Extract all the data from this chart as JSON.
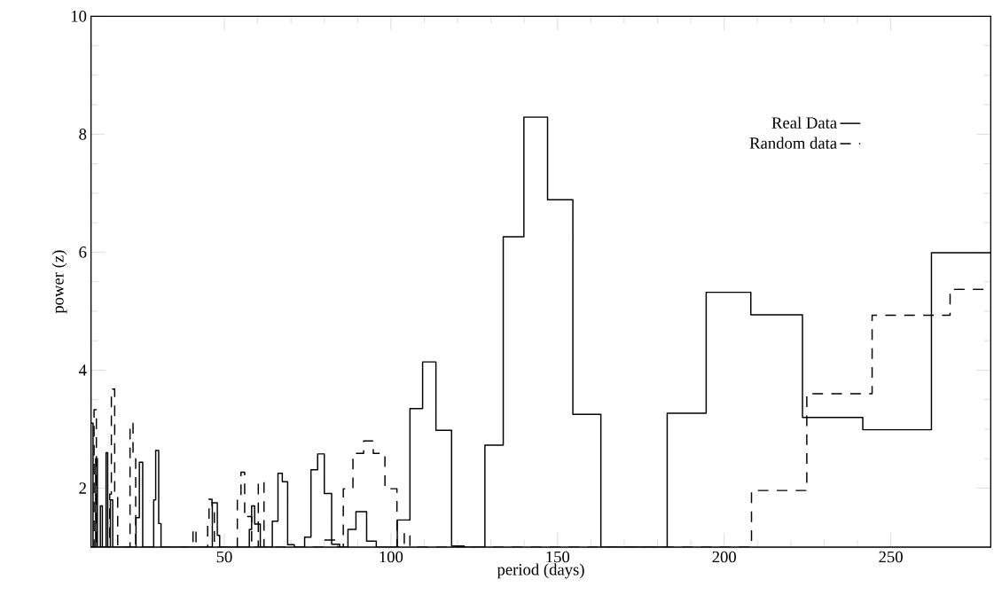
{
  "chart_data": {
    "type": "step",
    "xlabel": "period (days)",
    "ylabel": "power (z)",
    "xlim": [
      10,
      280
    ],
    "ylim": [
      1,
      10
    ],
    "xticks": [
      50,
      100,
      150,
      200,
      250
    ],
    "yticks": [
      2,
      4,
      6,
      8,
      10
    ],
    "legend": "top right",
    "series": [
      {
        "name": "Real Data",
        "color": "#000000",
        "line_style": "solid",
        "x": [
          10,
          10.6,
          11.4,
          11.9,
          12.8,
          13.4,
          14.5,
          15.0,
          15.8,
          16.5,
          23.5,
          24.5,
          25.5,
          28.8,
          29.4,
          30.3,
          31.0,
          46.4,
          47.9,
          48.6,
          57.5,
          58.2,
          59.1,
          60.8,
          64.4,
          66.1,
          67.4,
          69.0,
          71.0,
          74.1,
          76.0,
          78.0,
          80.0,
          82.2,
          84.6,
          87.1,
          89.5,
          92.7,
          95.6,
          101.9,
          105.7,
          109.5,
          113.5,
          118.2,
          122,
          128.2,
          133.7,
          139.9,
          147.0,
          154.6,
          163.0,
          182.9,
          194.6,
          208.0,
          223.5,
          241.6,
          262.2,
          280
        ],
        "values": [
          3.1,
          1.0,
          2.5,
          1.0,
          1.7,
          1.0,
          2.6,
          1.0,
          1.8,
          1.0,
          1.5,
          2.44,
          1.0,
          1.8,
          2.64,
          1.4,
          1.0,
          1.75,
          1.2,
          1.0,
          1.3,
          1.7,
          1.39,
          1.0,
          1.44,
          2.25,
          2.11,
          1.04,
          1.0,
          1.17,
          2.31,
          2.58,
          1.91,
          1.05,
          1.0,
          1.3,
          1.6,
          1.1,
          1.0,
          1.46,
          3.35,
          4.14,
          2.98,
          1.02,
          1.0,
          2.73,
          6.26,
          8.29,
          6.89,
          3.25,
          1.0,
          3.27,
          5.32,
          4.94,
          3.2,
          2.99,
          5.99,
          5.99
        ]
      },
      {
        "name": "Random data",
        "color": "#000000",
        "line_style": "dashed",
        "x": [
          10,
          10.9,
          11.6,
          15.6,
          16.1,
          17.1,
          18.0,
          21.7,
          22.6,
          23.4,
          40.6,
          41.5,
          45.0,
          45.4,
          46.3,
          47.0,
          53.9,
          55.0,
          56.1,
          56.9,
          58.2,
          60.2,
          61.9,
          80.0,
          84.0,
          85.7,
          88.6,
          91.8,
          94.7,
          98.2,
          101.8,
          104.0,
          105.7,
          208.2,
          224.8,
          244.4,
          267.8,
          280
        ],
        "values": [
          1.0,
          3.33,
          1.0,
          1.9,
          3.68,
          1.86,
          1.0,
          3.1,
          2.5,
          1.0,
          1.31,
          1.0,
          1.49,
          1.81,
          1.7,
          1.0,
          1.82,
          2.27,
          1.5,
          1.52,
          1.0,
          2.11,
          1.0,
          1.12,
          1.0,
          1.99,
          2.59,
          2.8,
          2.59,
          1.99,
          1.0,
          1.24,
          1.0,
          1.96,
          3.6,
          4.93,
          5.37,
          5.37
        ]
      }
    ]
  }
}
